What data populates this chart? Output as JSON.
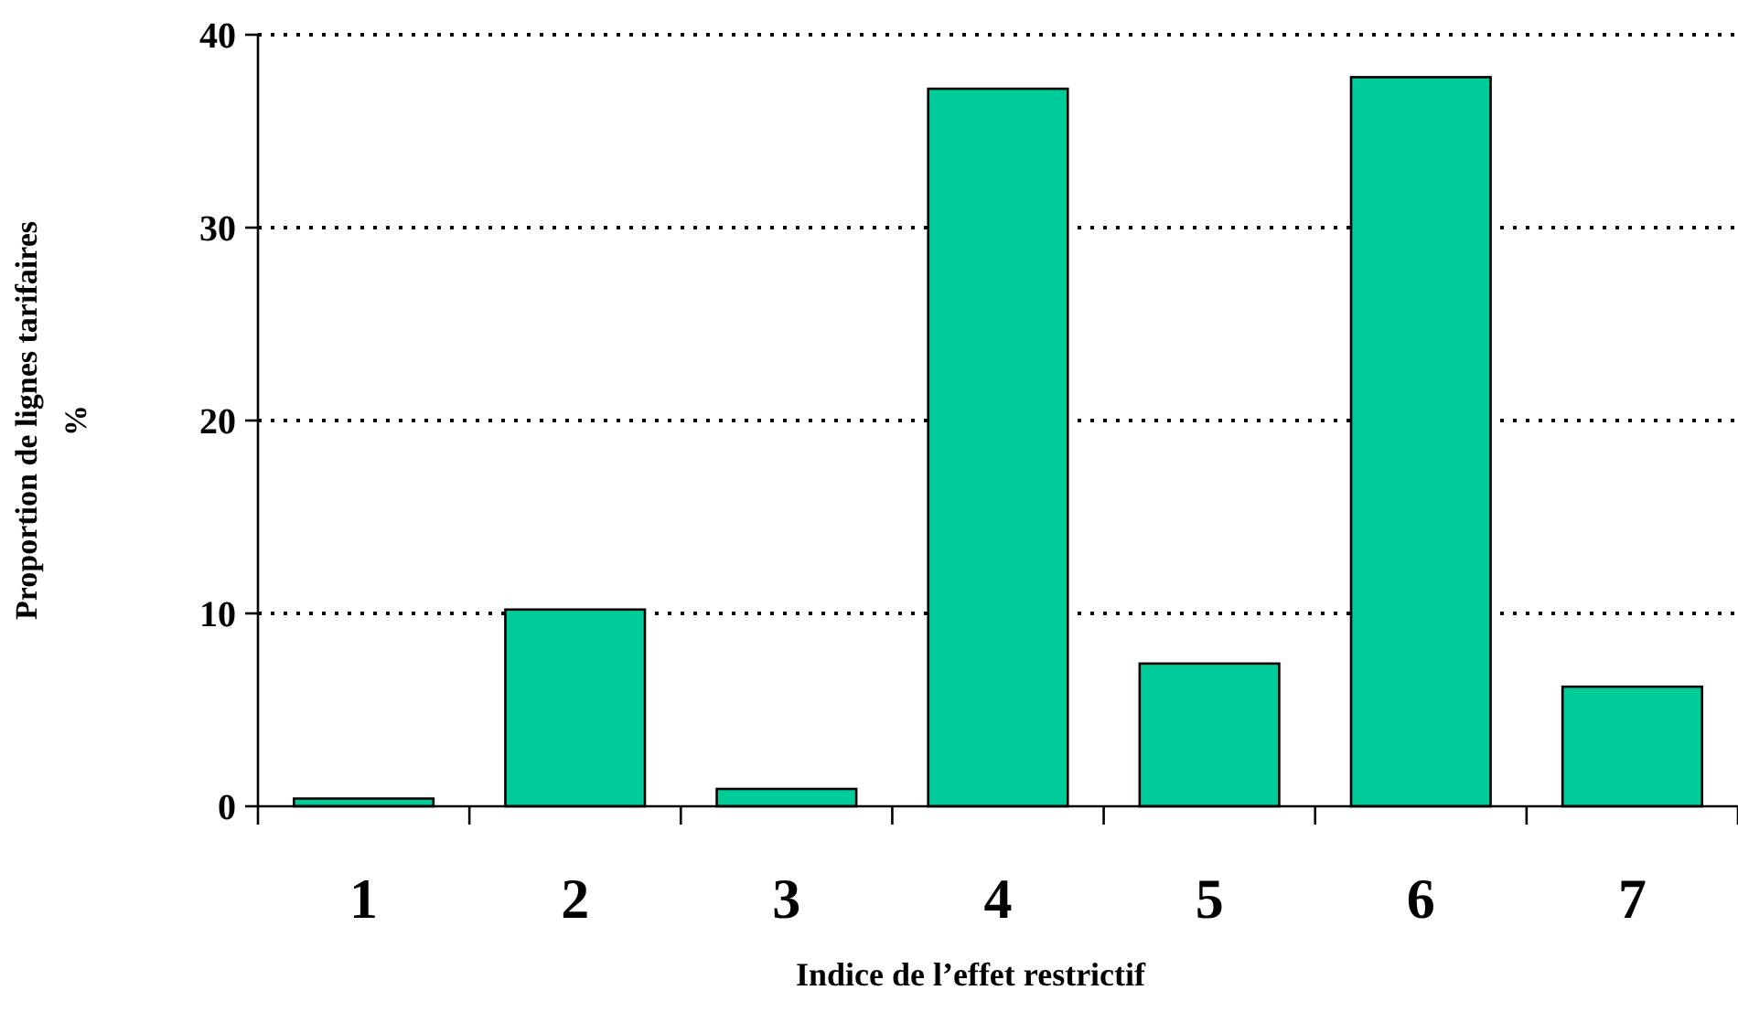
{
  "chart_data": {
    "type": "bar",
    "xlabel": "Indice de l’effet restrictif",
    "ylabel": "Proportion de lignes tarifaires\n%",
    "categories": [
      "1",
      "2",
      "3",
      "4",
      "5",
      "6",
      "7"
    ],
    "values": [
      0.4,
      10.2,
      0.9,
      37.2,
      7.4,
      37.8,
      6.2
    ],
    "color": "#00cc99",
    "ylim": [
      0,
      40
    ],
    "yticks": [
      0,
      10,
      20,
      30,
      40
    ],
    "grid": "y"
  }
}
